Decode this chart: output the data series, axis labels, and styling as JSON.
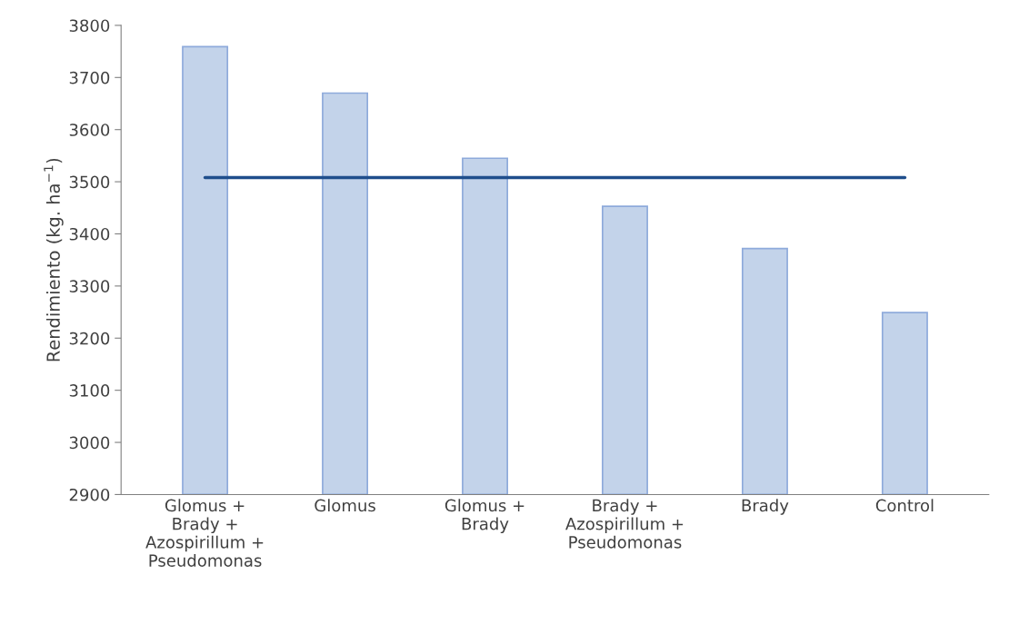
{
  "chart_data": {
    "type": "bar",
    "ylabel": "Rendimiento (kg. ha$^{−1}$)",
    "categories": [
      "Glomus +\nBrady +\nAzospirillum +\nPseudomonas",
      "Glomus",
      "Glomus +\nBrady",
      "Brady +\nAzospirillum +\nPseudomonas",
      "Brady",
      "Control"
    ],
    "series": [
      {
        "color": "#c3d3ea",
        "values": [
          3759,
          3670,
          3545,
          3453,
          3372,
          3249
        ]
      },
      {
        "type": "line",
        "color": "#1f4e8c",
        "values": [
          3508,
          3508,
          3508,
          3508,
          3508,
          3508
        ]
      }
    ],
    "ylim": [
      2900,
      3800
    ],
    "yticks": [
      2900,
      3000,
      3100,
      3200,
      3300,
      3400,
      3500,
      3600,
      3700,
      3800
    ],
    "grid": false,
    "legend": false,
    "marker": "none",
    "line_style": "solid"
  }
}
